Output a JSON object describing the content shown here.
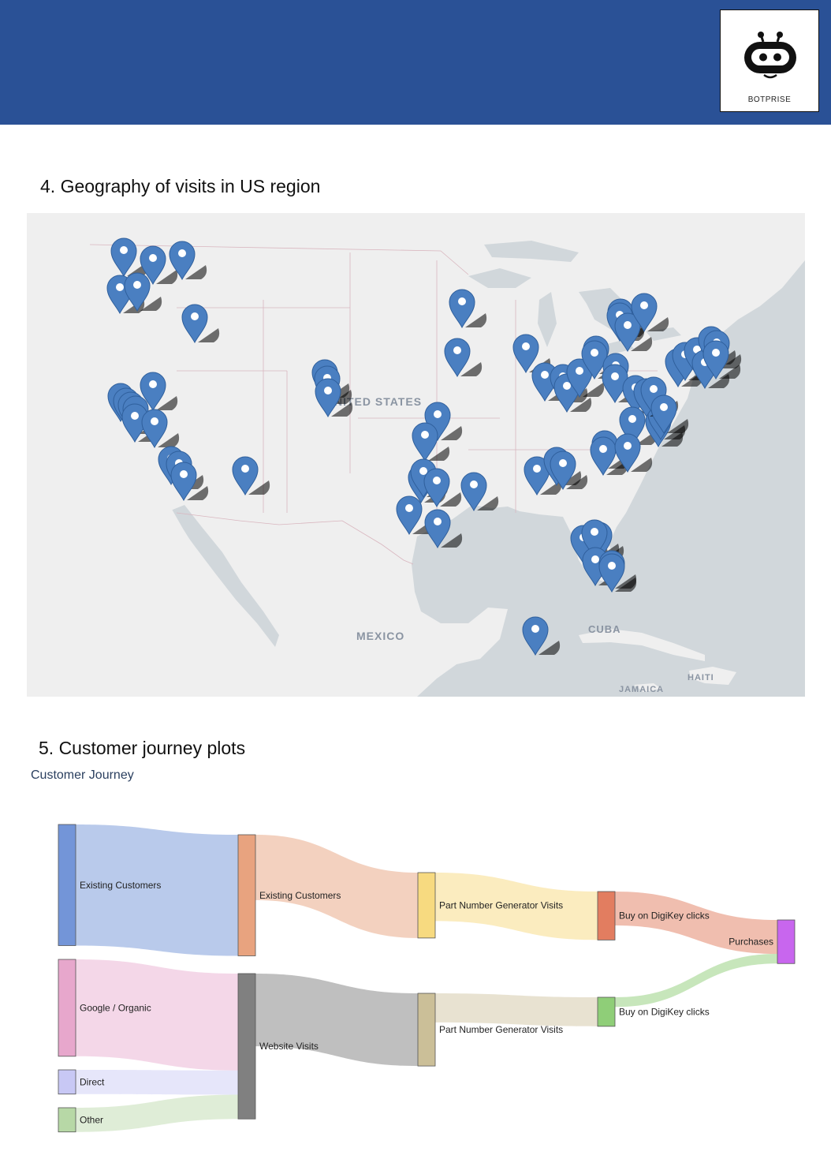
{
  "header": {
    "logo_text": "BOTPRISE",
    "color": "#2a5196"
  },
  "section4": {
    "title": "4. Geography of visits in US region"
  },
  "map": {
    "labels": {
      "country": "NITED STATES",
      "mexico": "MEXICO",
      "cuba": "CUBA",
      "haiti": "HAITI",
      "jamaica": "JAMAICA"
    },
    "marker_icon": "map-pin-icon",
    "marker_color": "#4a7fc1"
  },
  "section5": {
    "title": "5. Customer journey plots"
  },
  "chart_data": {
    "type": "sankey",
    "title": "Customer Journey",
    "nodes": [
      {
        "name": "Existing Customers",
        "color": "#7395d8"
      },
      {
        "name": "Google / Organic",
        "color": "#e7a7cc"
      },
      {
        "name": "Direct",
        "color": "#c8c8f5"
      },
      {
        "name": "Other",
        "color": "#b7d8a6"
      },
      {
        "name": "Existing Customers",
        "color": "#e8a37f"
      },
      {
        "name": "Website Visits",
        "color": "#808080"
      },
      {
        "name": "Part Number Generator Visits",
        "color": "#f7da80"
      },
      {
        "name": "Part Number Generator Visits",
        "color": "#cbbf98"
      },
      {
        "name": "Buy on DigiKey clicks",
        "color": "#e27d60"
      },
      {
        "name": "Buy on DigiKey clicks",
        "color": "#8fce78"
      },
      {
        "name": "Purchases",
        "color": "#c866ee"
      }
    ],
    "links": [
      {
        "source": 0,
        "target": 4,
        "value": 50
      },
      {
        "source": 1,
        "target": 5,
        "value": 40
      },
      {
        "source": 2,
        "target": 5,
        "value": 10
      },
      {
        "source": 3,
        "target": 5,
        "value": 10
      },
      {
        "source": 4,
        "target": 6,
        "value": 27
      },
      {
        "source": 5,
        "target": 7,
        "value": 30
      },
      {
        "source": 6,
        "target": 8,
        "value": 20
      },
      {
        "source": 7,
        "target": 9,
        "value": 12
      },
      {
        "source": 8,
        "target": 10,
        "value": 14
      },
      {
        "source": 9,
        "target": 10,
        "value": 4
      }
    ]
  }
}
